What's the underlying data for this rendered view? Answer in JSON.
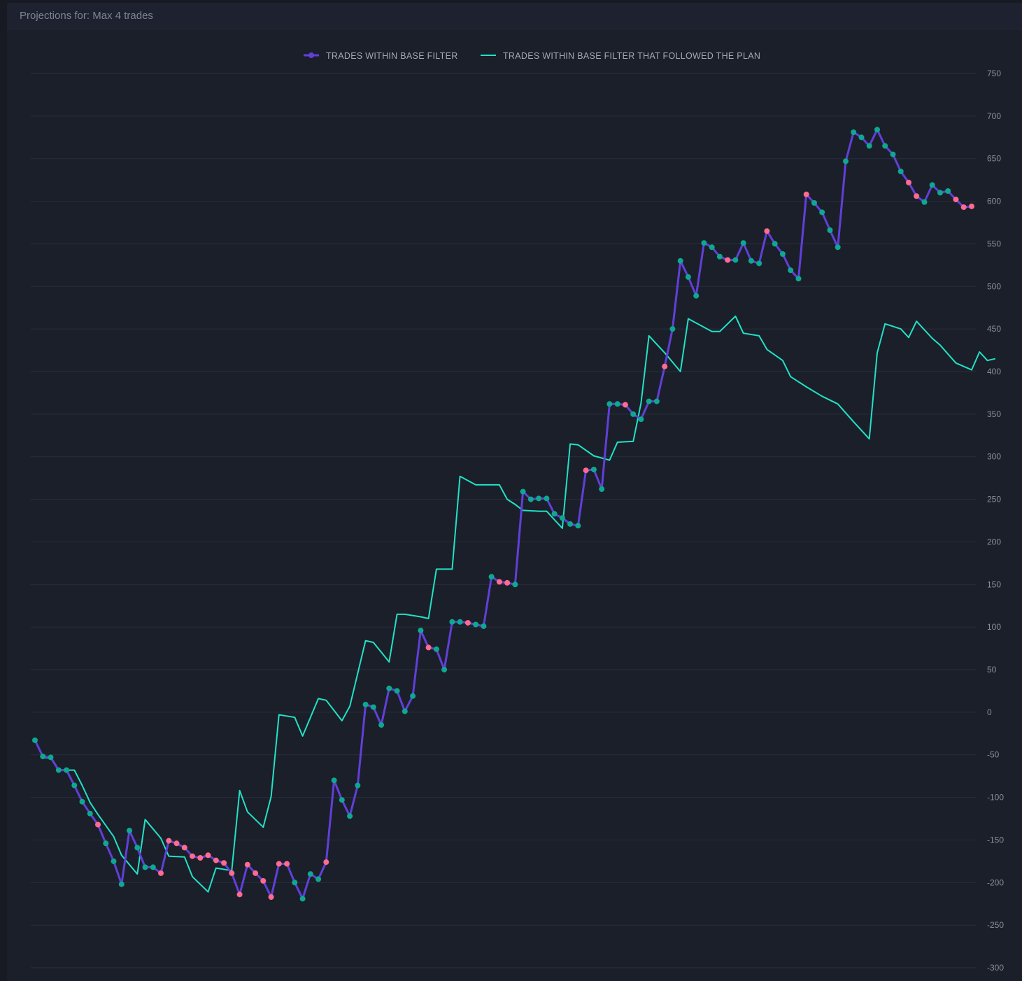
{
  "panel": {
    "title": "Projections for: Max 4 trades"
  },
  "colors": {
    "base": "#6040d8",
    "plan": "#21e2c6",
    "win": "#0ea890",
    "loss": "#ff6b8f",
    "grid": "#2a2f3d"
  },
  "chart_data": {
    "type": "line",
    "title": "Projections for: Max 4 trades",
    "ylim": [
      -300,
      750
    ],
    "yticks": [
      "750",
      "700",
      "650",
      "600",
      "550",
      "500",
      "450",
      "400",
      "350",
      "300",
      "250",
      "200",
      "150",
      "100",
      "50",
      "0",
      "-50",
      "-100",
      "-150",
      "-200",
      "-250",
      "-300"
    ],
    "y_axis_side": "right",
    "grid": true,
    "legend_position": "top-center",
    "series": [
      {
        "name": "TRADES WITHIN BASE FILTER",
        "values": [
          -33,
          -52,
          -53,
          -68,
          -68,
          -86,
          -105,
          -119,
          -132,
          -154,
          -175,
          -202,
          -139,
          -159,
          -182,
          -182,
          -189,
          -151,
          -154,
          -159,
          -169,
          -171,
          -168,
          -174,
          -177,
          -189,
          -214,
          -179,
          -189,
          -198,
          -217,
          -178,
          -178,
          -200,
          -219,
          -190,
          -196,
          -176,
          -80,
          -103,
          -122,
          -86,
          9,
          6,
          -15,
          28,
          25,
          1,
          19,
          96,
          76,
          74,
          50,
          106,
          106,
          105,
          103,
          101,
          159,
          153,
          152,
          150,
          259,
          250,
          251,
          251,
          233,
          228,
          221,
          219,
          284,
          285,
          262,
          362,
          362,
          361,
          350,
          344,
          365,
          365,
          406,
          450,
          530,
          511,
          489,
          551,
          546,
          535,
          531,
          531,
          551,
          530,
          527,
          565,
          550,
          538,
          519,
          509,
          608,
          598,
          587,
          566,
          546,
          647,
          681,
          675,
          665,
          684,
          665,
          655,
          635,
          622,
          606,
          599,
          619,
          610,
          612,
          602,
          593,
          594
        ],
        "marker_outcome": [
          "win",
          "win",
          "win",
          "win",
          "win",
          "win",
          "win",
          "win",
          "loss",
          "win",
          "win",
          "win",
          "win",
          "win",
          "win",
          "win",
          "loss",
          "loss",
          "loss",
          "loss",
          "loss",
          "loss",
          "loss",
          "loss",
          "loss",
          "loss",
          "loss",
          "loss",
          "loss",
          "loss",
          "loss",
          "loss",
          "loss",
          "win",
          "win",
          "win",
          "win",
          "loss",
          "win",
          "win",
          "win",
          "win",
          "win",
          "win",
          "win",
          "win",
          "win",
          "win",
          "win",
          "win",
          "loss",
          "win",
          "win",
          "win",
          "win",
          "loss",
          "win",
          "win",
          "win",
          "loss",
          "loss",
          "win",
          "win",
          "win",
          "win",
          "win",
          "win",
          "win",
          "win",
          "win",
          "loss",
          "win",
          "win",
          "win",
          "win",
          "loss",
          "win",
          "win",
          "win",
          "win",
          "loss",
          "win",
          "win",
          "win",
          "win",
          "win",
          "win",
          "win",
          "loss",
          "win",
          "win",
          "win",
          "win",
          "loss",
          "win",
          "win",
          "win",
          "win",
          "loss",
          "win",
          "win",
          "win",
          "win",
          "win",
          "win",
          "win",
          "win",
          "win",
          "win",
          "win",
          "win",
          "loss",
          "loss",
          "win",
          "win",
          "win",
          "win",
          "loss",
          "loss",
          "loss"
        ]
      },
      {
        "name": "TRADES WITHIN BASE FILTER THAT FOLLOWED THE PLAN",
        "values": [
          -33,
          -53,
          -54,
          -68,
          -68,
          -86,
          -106,
          -120,
          -146,
          -168,
          -190,
          -126,
          -148,
          -169,
          -170,
          -193,
          -211,
          -183,
          -186,
          -92,
          -117,
          -135,
          -99,
          -3,
          -6,
          -28,
          16,
          14,
          -10,
          7,
          84,
          82,
          59,
          115,
          115,
          112,
          110,
          168,
          168,
          277,
          267,
          267,
          267,
          250,
          244,
          237,
          236,
          236,
          216,
          315,
          314,
          301,
          296,
          317,
          318,
          363,
          442,
          422,
          400,
          462,
          457,
          447,
          447,
          465,
          445,
          442,
          426,
          413,
          394,
          382,
          371,
          362,
          341,
          321,
          422,
          456,
          450,
          440,
          459,
          439,
          431,
          410,
          402,
          423,
          413,
          415
        ],
        "x_index": [
          0,
          1,
          2,
          3,
          5,
          6,
          7,
          8,
          10,
          11,
          13,
          14,
          16,
          17,
          19,
          20,
          22,
          23,
          25,
          26,
          27,
          29,
          30,
          31,
          33,
          34,
          36,
          37,
          39,
          40,
          42,
          43,
          45,
          46,
          47,
          49,
          50,
          51,
          53,
          54,
          56,
          57,
          59,
          60,
          61,
          62,
          64,
          65,
          67,
          68,
          69,
          71,
          73,
          74,
          76,
          77,
          78,
          80,
          82,
          83,
          84,
          86,
          87,
          89,
          90,
          92,
          93,
          95,
          96,
          98,
          100,
          102,
          104,
          106,
          107,
          108,
          110,
          111,
          112,
          114,
          115,
          117,
          119,
          120,
          121,
          122
        ]
      }
    ]
  }
}
